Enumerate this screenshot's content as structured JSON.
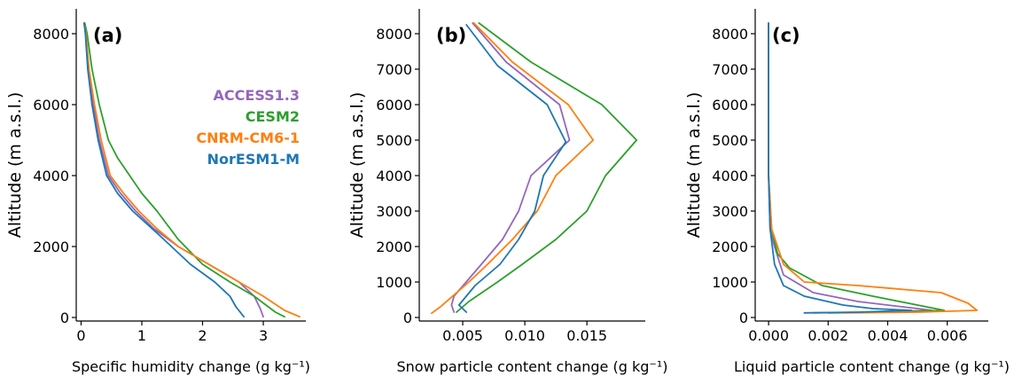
{
  "chart_data": [
    {
      "type": "line",
      "panel_label": "(a)",
      "xlabel": "Specific humidity change (g kg⁻¹)",
      "ylabel": "Altitude (m a.s.l.)",
      "xlim": [
        -0.08,
        3.7
      ],
      "ylim": [
        -100,
        8700
      ],
      "xticks": [
        0,
        1,
        2,
        3
      ],
      "yticks": [
        0,
        2000,
        4000,
        6000,
        8000
      ],
      "ytick_labels": [
        "0",
        "2000",
        "4000",
        "6000",
        "8000"
      ],
      "legend": {
        "location": "upper-right"
      },
      "series": [
        {
          "name": "ACCESS1.3",
          "color": "#9467bd",
          "x": [
            0.05,
            0.08,
            0.12,
            0.2,
            0.3,
            0.45,
            0.65,
            0.9,
            1.2,
            1.6,
            2.1,
            2.6,
            2.85,
            2.95,
            3.0
          ],
          "y": [
            8300,
            8000,
            7000,
            6000,
            5000,
            4000,
            3500,
            3000,
            2500,
            2000,
            1500,
            1000,
            600,
            250,
            20
          ]
        },
        {
          "name": "CESM2",
          "color": "#2ca02c",
          "x": [
            0.06,
            0.1,
            0.18,
            0.3,
            0.45,
            0.6,
            0.8,
            1.0,
            1.25,
            1.6,
            2.0,
            2.45,
            2.85,
            3.2,
            3.35
          ],
          "y": [
            8300,
            8000,
            7000,
            6000,
            5000,
            4500,
            4000,
            3500,
            3000,
            2200,
            1500,
            1000,
            600,
            150,
            20
          ]
        },
        {
          "name": "CNRM-CM6-1",
          "color": "#ff7f0e",
          "x": [
            0.05,
            0.08,
            0.13,
            0.22,
            0.33,
            0.48,
            0.7,
            0.95,
            1.25,
            1.6,
            2.1,
            2.6,
            3.0,
            3.35,
            3.6
          ],
          "y": [
            8300,
            8000,
            7000,
            6000,
            5000,
            4000,
            3500,
            3000,
            2500,
            2000,
            1500,
            1000,
            600,
            200,
            20
          ]
        },
        {
          "name": "NorESM1-M",
          "color": "#1f77b4",
          "x": [
            0.05,
            0.07,
            0.11,
            0.18,
            0.28,
            0.42,
            0.6,
            0.85,
            1.3,
            1.8,
            2.2,
            2.45,
            2.55,
            2.68
          ],
          "y": [
            8300,
            8000,
            7000,
            6000,
            5000,
            4000,
            3500,
            3000,
            2300,
            1500,
            1000,
            600,
            300,
            20
          ]
        }
      ]
    },
    {
      "type": "line",
      "panel_label": "(b)",
      "xlabel": "Snow particle content change (g kg⁻¹)",
      "ylabel": "Altitude (m a.s.l.)",
      "xlim": [
        0.0015,
        0.0197
      ],
      "ylim": [
        -100,
        8700
      ],
      "xticks": [
        0.005,
        0.01,
        0.015
      ],
      "xtick_labels": [
        "0.005",
        "0.010",
        "0.015"
      ],
      "yticks": [
        0,
        1000,
        2000,
        3000,
        4000,
        5000,
        6000,
        7000,
        8000
      ],
      "ytick_labels": [
        "0",
        "1000",
        "2000",
        "3000",
        "4000",
        "5000",
        "6000",
        "7000",
        "8000"
      ],
      "series": [
        {
          "name": "ACCESS1.3",
          "color": "#9467bd",
          "x": [
            0.0058,
            0.0085,
            0.0128,
            0.0136,
            0.0105,
            0.0095,
            0.0082,
            0.0065,
            0.0043,
            0.0041,
            0.0043
          ],
          "y": [
            8300,
            7200,
            6000,
            5000,
            4000,
            3000,
            2200,
            1500,
            600,
            350,
            150
          ]
        },
        {
          "name": "CESM2",
          "color": "#2ca02c",
          "x": [
            0.0063,
            0.0105,
            0.0162,
            0.019,
            0.0165,
            0.015,
            0.0125,
            0.0098,
            0.0078,
            0.0055,
            0.005,
            0.0045
          ],
          "y": [
            8300,
            7200,
            6000,
            5000,
            4000,
            3000,
            2200,
            1500,
            1000,
            450,
            300,
            150
          ]
        },
        {
          "name": "CNRM-CM6-1",
          "color": "#ff7f0e",
          "x": [
            0.0059,
            0.009,
            0.0135,
            0.0155,
            0.0125,
            0.011,
            0.009,
            0.007,
            0.0055,
            0.0032,
            0.0025
          ],
          "y": [
            8300,
            7200,
            6000,
            5000,
            4000,
            3000,
            2200,
            1500,
            1000,
            300,
            120
          ]
        },
        {
          "name": "NorESM1-M",
          "color": "#1f77b4",
          "x": [
            0.0053,
            0.0078,
            0.0118,
            0.0133,
            0.0115,
            0.0108,
            0.0095,
            0.008,
            0.006,
            0.0047,
            0.005,
            0.0053
          ],
          "y": [
            8250,
            7100,
            6000,
            4950,
            4000,
            3000,
            2200,
            1500,
            900,
            350,
            250,
            150
          ]
        }
      ]
    },
    {
      "type": "line",
      "panel_label": "(c)",
      "xlabel": "Liquid particle content change (g kg⁻¹)",
      "ylabel": "Altitude (m a.s.l.)",
      "xlim": [
        -0.00045,
        0.00738
      ],
      "ylim": [
        -100,
        8700
      ],
      "xticks": [
        0.0,
        0.002,
        0.004,
        0.006
      ],
      "xtick_labels": [
        "0.000",
        "0.002",
        "0.004",
        "0.006"
      ],
      "yticks": [
        0,
        1000,
        2000,
        3000,
        4000,
        5000,
        6000,
        7000,
        8000
      ],
      "ytick_labels": [
        "0",
        "1000",
        "2000",
        "3000",
        "4000",
        "5000",
        "6000",
        "7000",
        "8000"
      ],
      "series": [
        {
          "name": "ACCESS1.3",
          "color": "#9467bd",
          "x": [
            0.0,
            0.0,
            5e-05,
            0.0002,
            0.0005,
            0.0015,
            0.003,
            0.0045,
            0.0055,
            0.0035,
            0.0015
          ],
          "y": [
            8300,
            4000,
            2500,
            2000,
            1200,
            700,
            450,
            300,
            200,
            150,
            130
          ]
        },
        {
          "name": "CESM2",
          "color": "#2ca02c",
          "x": [
            0.0,
            0.0,
            0.0001,
            0.0003,
            0.0007,
            0.0018,
            0.0035,
            0.005,
            0.0059,
            0.004,
            0.002
          ],
          "y": [
            8300,
            4000,
            2500,
            1800,
            1400,
            900,
            600,
            350,
            200,
            150,
            130
          ]
        },
        {
          "name": "CNRM-CM6-1",
          "color": "#ff7f0e",
          "x": [
            0.0,
            0.0,
            0.0001,
            0.0005,
            0.0012,
            0.003,
            0.0058,
            0.0067,
            0.007,
            0.005,
            0.0025
          ],
          "y": [
            8300,
            4000,
            2500,
            1500,
            1000,
            900,
            700,
            400,
            200,
            150,
            130
          ]
        },
        {
          "name": "NorESM1-M",
          "color": "#1f77b4",
          "x": [
            0.0,
            0.0,
            5e-05,
            0.0002,
            0.0005,
            0.0012,
            0.0025,
            0.0035,
            0.0048,
            0.003,
            0.0012
          ],
          "y": [
            8300,
            4000,
            2500,
            1500,
            900,
            600,
            350,
            250,
            200,
            150,
            130
          ]
        }
      ]
    }
  ]
}
